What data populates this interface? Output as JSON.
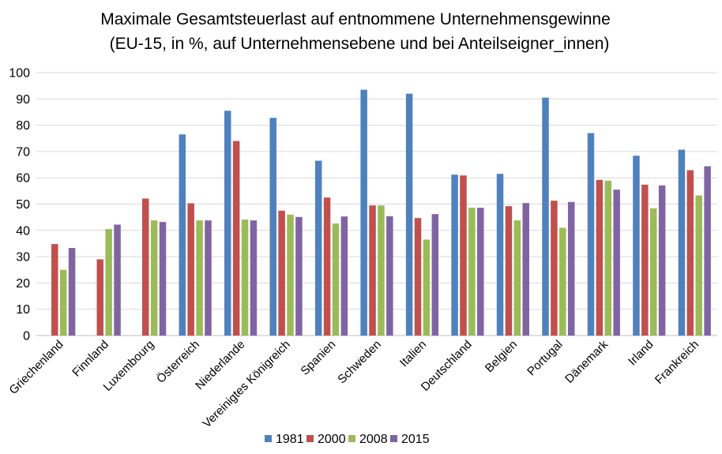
{
  "chart_data": {
    "type": "bar",
    "title": "Maximale Gesamtsteuerlast auf entnommene Unternehmensgewinne",
    "subtitle": "(EU-15, in %, auf Unternehmensebene  und bei Anteilseigner_innen)",
    "xlabel": "",
    "ylabel": "",
    "ylim": [
      0,
      100
    ],
    "yticks": [
      0,
      10,
      20,
      30,
      40,
      50,
      60,
      70,
      80,
      90,
      100
    ],
    "grid": true,
    "legend_position": "bottom",
    "categories": [
      "Griechenland",
      "Finnland",
      "Luxembourg",
      "Österreich",
      "Niederlande",
      "Vereinigtes Königreich",
      "Spanien",
      "Schweden",
      "Italien",
      "Deutschland",
      "Belgien",
      "Portugal",
      "Dänemark",
      "Irland",
      "Frankreich"
    ],
    "series": [
      {
        "name": "1981",
        "color": "#4f81bd",
        "values": [
          null,
          null,
          null,
          76.5,
          85.5,
          82.8,
          66.5,
          93.5,
          92.0,
          61.2,
          61.5,
          90.5,
          77.0,
          68.4,
          70.7
        ]
      },
      {
        "name": "2000",
        "color": "#c0504d",
        "values": [
          34.8,
          29.0,
          52.1,
          50.3,
          74.0,
          47.5,
          52.5,
          49.5,
          44.7,
          60.9,
          49.2,
          51.3,
          59.2,
          57.4,
          62.9
        ]
      },
      {
        "name": "2008",
        "color": "#9bbb59",
        "values": [
          25.0,
          40.5,
          43.8,
          43.8,
          44.1,
          46.0,
          42.6,
          49.5,
          36.5,
          48.6,
          43.8,
          41.0,
          58.9,
          48.4,
          53.3
        ]
      },
      {
        "name": "2015",
        "color": "#8064a2",
        "values": [
          33.3,
          42.2,
          43.2,
          43.8,
          43.8,
          45.1,
          45.3,
          45.4,
          46.2,
          48.6,
          50.4,
          50.8,
          55.5,
          57.1,
          64.4
        ]
      }
    ]
  }
}
